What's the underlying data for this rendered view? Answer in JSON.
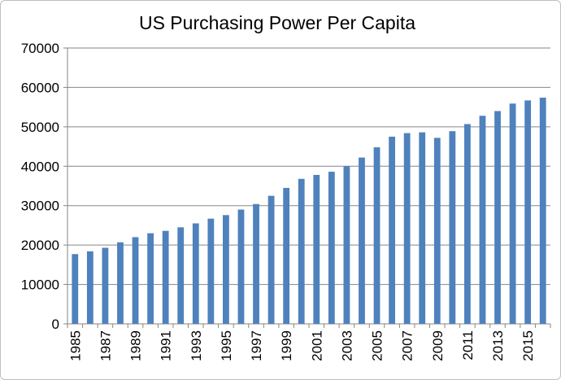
{
  "chart_data": {
    "type": "bar",
    "title": "US Purchasing Power Per Capita",
    "xlabel": "",
    "ylabel": "",
    "ylim": [
      0,
      70000
    ],
    "yticks": [
      0,
      10000,
      20000,
      30000,
      40000,
      50000,
      60000,
      70000
    ],
    "grid": true,
    "legend": "none",
    "bar_color": "#4f81bd",
    "categories": [
      "1985",
      "1986",
      "1987",
      "1988",
      "1989",
      "1990",
      "1991",
      "1992",
      "1993",
      "1994",
      "1995",
      "1996",
      "1997",
      "1998",
      "1999",
      "2000",
      "2001",
      "2002",
      "2003",
      "2004",
      "2005",
      "2006",
      "2007",
      "2008",
      "2009",
      "2010",
      "2011",
      "2012",
      "2013",
      "2014",
      "2015",
      "2016"
    ],
    "shown_category_labels": [
      "1985",
      "1987",
      "1989",
      "1991",
      "1993",
      "1995",
      "1997",
      "1999",
      "2001",
      "2003",
      "2005",
      "2007",
      "2009",
      "2011",
      "2013",
      "2015"
    ],
    "values": [
      17700,
      18400,
      19300,
      20700,
      22000,
      23000,
      23600,
      24500,
      25500,
      26700,
      27600,
      29000,
      30400,
      32500,
      34500,
      36800,
      37800,
      38600,
      40000,
      42200,
      44800,
      47500,
      48400,
      48600,
      47200,
      48900,
      50700,
      52800,
      54000,
      55900,
      56700,
      57400
    ]
  }
}
